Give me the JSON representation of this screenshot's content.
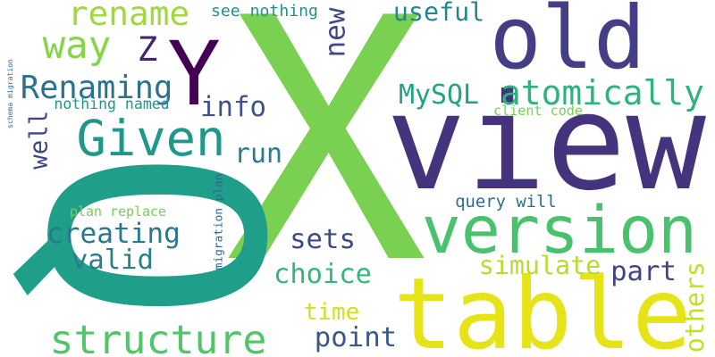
{
  "words": [
    {
      "text": "X",
      "color": "#7ad151",
      "rotate": 0
    },
    {
      "text": "Q",
      "color": "#1f9e89",
      "rotate": 90
    },
    {
      "text": "view",
      "color": "#46337e",
      "rotate": 0
    },
    {
      "text": "table",
      "color": "#e6e419",
      "rotate": 0
    },
    {
      "text": "version",
      "color": "#4ac16d",
      "rotate": 0
    },
    {
      "text": "old",
      "color": "#433e85",
      "rotate": 0
    },
    {
      "text": "Y",
      "color": "#440154",
      "rotate": 0
    },
    {
      "text": "Given",
      "color": "#1f988b",
      "rotate": 0
    },
    {
      "text": "structure",
      "color": "#52c569",
      "rotate": 0
    },
    {
      "text": "rename",
      "color": "#a0da39",
      "rotate": 0
    },
    {
      "text": "atomically",
      "color": "#2eb37c",
      "rotate": 0
    },
    {
      "text": "way",
      "color": "#86d549",
      "rotate": 0
    },
    {
      "text": "Z",
      "color": "#482173",
      "rotate": 0
    },
    {
      "text": "Renaming",
      "color": "#2c728e",
      "rotate": 0
    },
    {
      "text": "creating",
      "color": "#2a788e",
      "rotate": 0
    },
    {
      "text": "valid",
      "color": "#277f8e",
      "rotate": 0
    },
    {
      "text": "choice",
      "color": "#35b779",
      "rotate": 0
    },
    {
      "text": "simulate",
      "color": "#b5de2b",
      "rotate": 0
    },
    {
      "text": "MySQL",
      "color": "#20a386",
      "rotate": 0
    },
    {
      "text": "useful",
      "color": "#25858e",
      "rotate": 0
    },
    {
      "text": "info",
      "color": "#3b528b",
      "rotate": 0
    },
    {
      "text": "run",
      "color": "#287c8e",
      "rotate": 0
    },
    {
      "text": "sets",
      "color": "#3e4989",
      "rotate": 0
    },
    {
      "text": "part",
      "color": "#414487",
      "rotate": 0
    },
    {
      "text": "point",
      "color": "#38588c",
      "rotate": 0
    },
    {
      "text": "time",
      "color": "#d0e11c",
      "rotate": 0
    },
    {
      "text": "new",
      "color": "#3f4788",
      "rotate": 270
    },
    {
      "text": "well",
      "color": "#404688",
      "rotate": 270
    },
    {
      "text": "others",
      "color": "#c2df23",
      "rotate": 270
    },
    {
      "text": "see nothing",
      "color": "#21918c",
      "rotate": 0
    },
    {
      "text": "nothing named",
      "color": "#1f968b",
      "rotate": 0
    },
    {
      "text": "client code",
      "color": "#75d054",
      "rotate": 0
    },
    {
      "text": "query will",
      "color": "#2d708e",
      "rotate": 0
    },
    {
      "text": "plan replace",
      "color": "#73d056",
      "rotate": 0
    },
    {
      "text": "migration plan",
      "color": "#32658e",
      "rotate": 270
    },
    {
      "text": "schema migration",
      "color": "#30698e",
      "rotate": 270
    }
  ]
}
